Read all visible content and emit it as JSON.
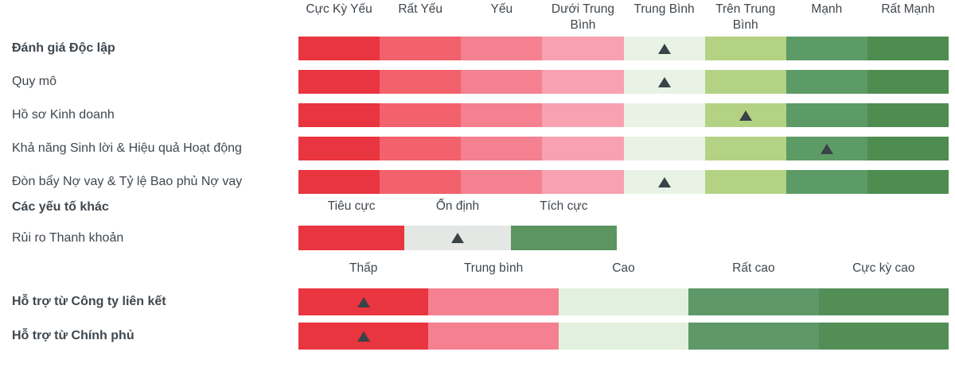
{
  "colors": {
    "text": "#3F474E",
    "marker": "#3A4348",
    "scale8_segments": [
      "#E9353F",
      "#F2616C",
      "#F5808F",
      "#F8A2B1",
      "#E9F3E5",
      "#B4D284",
      "#5C9B66",
      "#4E8C50"
    ],
    "scale3_segments": [
      "#E9353F",
      "#E4E7E4",
      "#5B9560"
    ],
    "scale5_segments": [
      "#E9353F",
      "#F5808F",
      "#E2F0DF",
      "#5E9768",
      "#548E57"
    ]
  },
  "scales": {
    "strength8": {
      "labels": [
        "Cực Kỳ Yếu",
        "Rất Yếu",
        "Yếu",
        "Dưới Trung Bình",
        "Trung Bình",
        "Trên Trung Bình",
        "Mạnh",
        "Rất Mạnh"
      ],
      "colors_key": "scale8_segments"
    },
    "outlook3": {
      "labels": [
        "Tiêu cực",
        "Ổn định",
        "Tích cực"
      ],
      "colors_key": "scale3_segments"
    },
    "support5": {
      "labels": [
        "Thấp",
        "Trung bình",
        "Cao",
        "Rất cao",
        "Cực kỳ cao"
      ],
      "colors_key": "scale5_segments"
    }
  },
  "sections": [
    {
      "id": "independent-assessment",
      "scale": "strength8",
      "rows": [
        {
          "label": "Đánh giá Độc lập",
          "bold": true,
          "rating": "Trung Bình"
        },
        {
          "label": "Quy mô",
          "bold": false,
          "rating": "Trung Bình"
        },
        {
          "label": "Hồ sơ Kinh doanh",
          "bold": false,
          "rating": "Trên Trung Bình"
        },
        {
          "label": "Khả năng Sinh lời & Hiệu quả Hoạt động",
          "bold": false,
          "rating": "Mạnh"
        },
        {
          "label": "Đòn bẩy Nợ vay & Tỷ lệ Bao phủ Nợ vay",
          "bold": false,
          "rating": "Trung Bình"
        }
      ]
    },
    {
      "id": "other-factors",
      "title": "Các yếu tố khác",
      "scale": "outlook3",
      "rows": [
        {
          "label": "Rủi ro Thanh khoản",
          "bold": false,
          "rating": "Ổn định"
        }
      ]
    },
    {
      "id": "support",
      "scale": "support5",
      "rows": [
        {
          "label": "Hỗ trợ từ Công ty liên kết",
          "bold": true,
          "rating": "Thấp"
        },
        {
          "label": "Hỗ trợ từ Chính phủ",
          "bold": true,
          "rating": "Thấp"
        }
      ]
    }
  ],
  "chart_data": {
    "type": "table",
    "title": "Rating factors assessment scale (Vietnamese credit rating scorecard)",
    "grid": false,
    "legend_position": "none",
    "scales": {
      "strength8": [
        "Cực Kỳ Yếu",
        "Rất Yếu",
        "Yếu",
        "Dưới Trung Bình",
        "Trung Bình",
        "Trên Trung Bình",
        "Mạnh",
        "Rất Mạnh"
      ],
      "outlook3": [
        "Tiêu cực",
        "Ổn định",
        "Tích cực"
      ],
      "support5": [
        "Thấp",
        "Trung bình",
        "Cao",
        "Rất cao",
        "Cực kỳ cao"
      ]
    },
    "rows": [
      {
        "label": "Đánh giá Độc lập",
        "scale": "strength8",
        "rating": "Trung Bình"
      },
      {
        "label": "Quy mô",
        "scale": "strength8",
        "rating": "Trung Bình"
      },
      {
        "label": "Hồ sơ Kinh doanh",
        "scale": "strength8",
        "rating": "Trên Trung Bình"
      },
      {
        "label": "Khả năng Sinh lời & Hiệu quả Hoạt động",
        "scale": "strength8",
        "rating": "Mạnh"
      },
      {
        "label": "Đòn bẩy Nợ vay & Tỷ lệ Bao phủ Nợ vay",
        "scale": "strength8",
        "rating": "Trung Bình"
      },
      {
        "label": "Rủi ro Thanh khoản",
        "scale": "outlook3",
        "rating": "Ổn định"
      },
      {
        "label": "Hỗ trợ từ Công ty liên kết",
        "scale": "support5",
        "rating": "Thấp"
      },
      {
        "label": "Hỗ trợ từ Chính phủ",
        "scale": "support5",
        "rating": "Thấp"
      }
    ]
  }
}
